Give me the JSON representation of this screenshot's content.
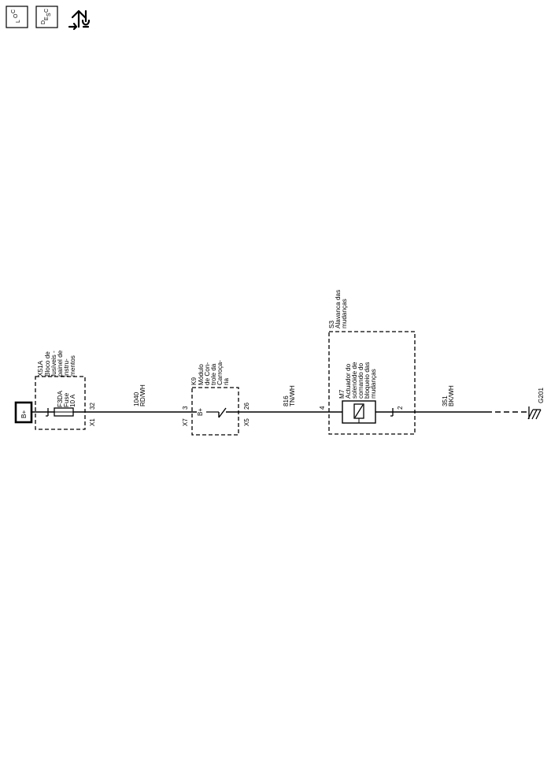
{
  "toolbar": {
    "loc_icon": "location-view-icon",
    "desc_icon": "description-view-icon",
    "diag_icon": "diagnostic-repair-icon",
    "loc": {
      "l": "L",
      "sub": "O",
      "c": "C"
    },
    "desc": {
      "d": "D",
      "e": "E",
      "s": "S",
      "c": "C"
    }
  },
  "diagram": {
    "battery": "B+",
    "fuse_block": {
      "name": "X51A",
      "desc": [
        "Bloco de",
        "fusíveis -",
        "painel de",
        "instru-",
        "mentos"
      ],
      "connector": "X1",
      "pin": "32"
    },
    "fuse": {
      "id": "F3DA",
      "type": "Fuse",
      "rating": "10 A"
    },
    "wire1": {
      "circuit": "1040",
      "color": "RD/WH"
    },
    "body_module": {
      "name": "K9",
      "desc": [
        "Módulo",
        "de Con-",
        "trole da",
        "Carroça-",
        "ria"
      ],
      "in_connector": "X7",
      "in_pin": "3",
      "out_connector": "X5",
      "out_pin": "26",
      "bplus": "B+"
    },
    "wire2": {
      "circuit": "816",
      "color": "TN/WH"
    },
    "shifter": {
      "name": "S3",
      "desc": [
        "Alavanca das",
        "mudanças"
      ],
      "in_pin": "4",
      "out_pin": "2"
    },
    "solenoid": {
      "name": "M7",
      "desc": [
        "Actuador do",
        "solenóide de",
        "comando do",
        "bloqueio das",
        "mudanças"
      ]
    },
    "wire3": {
      "circuit": "351",
      "color": "BK/WH"
    },
    "ground": "G201"
  }
}
